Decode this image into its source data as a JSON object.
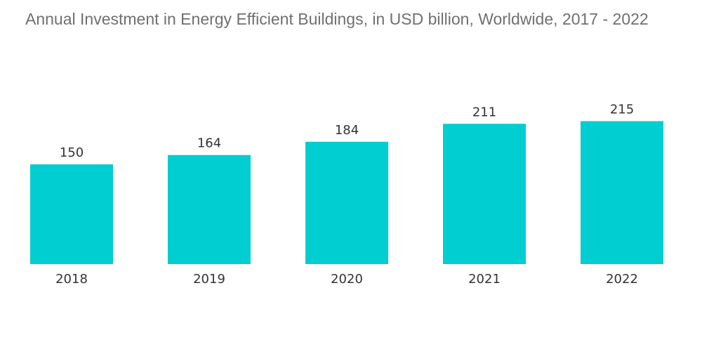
{
  "chart_data": {
    "type": "bar",
    "title": "Annual Investment in Energy Efficient Buildings, in USD billion, Worldwide, 2017 - 2022",
    "categories": [
      "2018",
      "2019",
      "2020",
      "2021",
      "2022"
    ],
    "values": [
      150,
      164,
      184,
      211,
      215
    ],
    "xlabel": "",
    "ylabel": "",
    "ylim": [
      0,
      260
    ],
    "grid": false,
    "legend": "none",
    "bar_color": "#00CED1"
  }
}
